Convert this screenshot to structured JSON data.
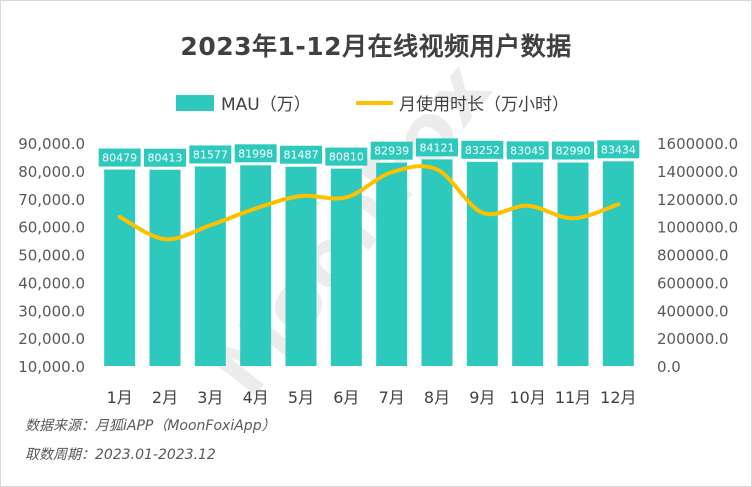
{
  "chart_data": {
    "type": "bar",
    "title": "2023年1-12月在线视频用户数据",
    "categories": [
      "1月",
      "2月",
      "3月",
      "4月",
      "5月",
      "6月",
      "7月",
      "8月",
      "9月",
      "10月",
      "11月",
      "12月"
    ],
    "series": [
      {
        "name": "MAU（万）",
        "type": "bar",
        "axis": "left",
        "color": "#2ec9bd",
        "values": [
          80479,
          80413,
          81577,
          81998,
          81487,
          80810,
          82939,
          84121,
          83252,
          83045,
          82990,
          83434
        ]
      },
      {
        "name": "月使用时长（万小时）",
        "type": "line",
        "axis": "right",
        "color": "#ffc000",
        "values": [
          1070000,
          910000,
          1010000,
          1130000,
          1220000,
          1210000,
          1390000,
          1410000,
          1100000,
          1150000,
          1060000,
          1160000
        ]
      }
    ],
    "y_left": {
      "min": 10000,
      "max": 90000,
      "ticks": [
        "10,000.0",
        "20,000.0",
        "30,000.0",
        "40,000.0",
        "50,000.0",
        "60,000.0",
        "70,000.0",
        "80,000.0",
        "90,000.0"
      ]
    },
    "y_right": {
      "min": 0,
      "max": 1600000,
      "ticks": [
        "0.0",
        "200000.0",
        "400000.0",
        "600000.0",
        "800000.0",
        "1000000.0",
        "1200000.0",
        "1400000.0",
        "1600000.0"
      ]
    },
    "legend_position": "top",
    "grid": false
  },
  "source_lines": {
    "line1": "数据来源：月狐iAPP（MoonFoxiApp）",
    "line2": "取数周期：2023.01-2023.12"
  },
  "watermark": "MoonFox",
  "colors": {
    "bar": "#2ec9bd",
    "line": "#ffc000",
    "label_bg": "#2ec9bd",
    "text": "#595959"
  }
}
